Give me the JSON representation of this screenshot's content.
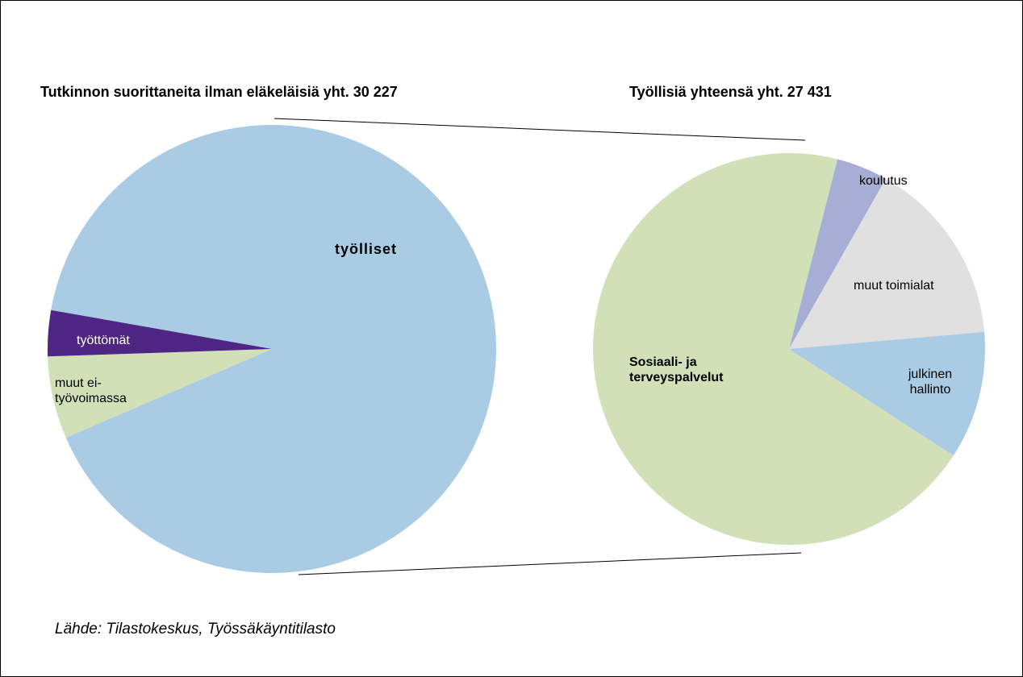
{
  "chart_data": [
    {
      "type": "pie",
      "title": "Tutkinnon suorittaneita ilman eläkeläisiä yht. 30 227",
      "categories": [
        "työlliset",
        "muut ei-työvoimassa",
        "työttömät"
      ],
      "values": [
        27431,
        1796,
        1000
      ],
      "colors": [
        "#a9cce4",
        "#d2e0b8",
        "#4f2683"
      ]
    },
    {
      "type": "pie",
      "title": "Työllisiä yhteensä yht. 27 431",
      "categories": [
        "koulutus",
        "muut toimialat",
        "julkinen hallinto",
        "Sosiaali- ja terveyspalvelut"
      ],
      "values": [
        1166,
        4221,
        2896,
        19148
      ],
      "colors": [
        "#a7aed6",
        "#e0e0e0",
        "#a9cce4",
        "#d2e0b8"
      ]
    }
  ],
  "source": "Lähde: Tilastokeskus, Työssäkäyntitilasto"
}
